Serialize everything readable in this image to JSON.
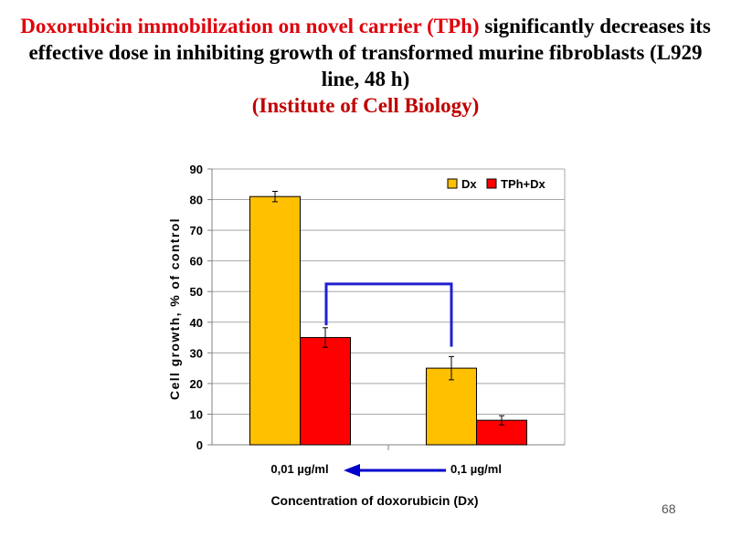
{
  "slide": {
    "title_red": "Doxorubicin immobilization on novel carrier (TPh)",
    "title_rest": "significantly decreases its effective dose in inhibiting growth of transformed murine fibroblasts (L929 line, 48 h)",
    "institute": "(Institute of Cell Biology)",
    "page_number": "68"
  },
  "colors": {
    "title_red": "#e0000b",
    "institute": "#c00000",
    "series_dx": "#ffc000",
    "series_tph_dx": "#ff0000",
    "bracket": "#2020d0",
    "arrow": "#0000cc"
  },
  "chart_data": {
    "type": "bar",
    "title": "",
    "categories": [
      "0,01 µg/ml",
      "0,1 µg/ml"
    ],
    "series": [
      {
        "name": "Dx",
        "values": [
          81,
          25
        ],
        "errors": [
          1.7,
          3.8
        ]
      },
      {
        "name": "TPh+Dx",
        "values": [
          35,
          8
        ],
        "errors": [
          3.2,
          1.5
        ]
      }
    ],
    "xlabel": "Concentration of doxorubicin (Dx)",
    "ylabel": "Cell growth, % of control",
    "ylim": [
      0,
      90
    ],
    "yticks": [
      0,
      10,
      20,
      30,
      40,
      50,
      60,
      70,
      80,
      90
    ],
    "grid": true,
    "legend_position": "top-right",
    "annotations": [
      {
        "type": "bracket",
        "between": [
          "0,01 µg/ml TPh+Dx",
          "0,1 µg/ml Dx"
        ]
      },
      {
        "type": "arrow",
        "from": "0,1 µg/ml",
        "to": "0,01 µg/ml"
      }
    ]
  }
}
